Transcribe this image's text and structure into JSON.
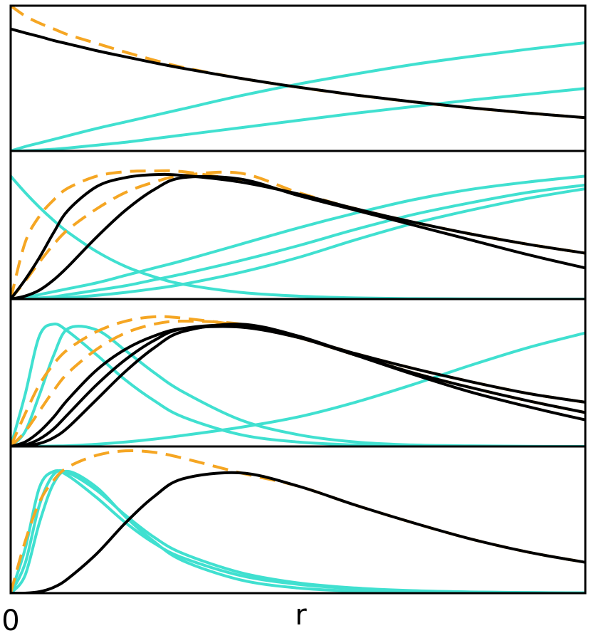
{
  "chart_data": [
    {
      "type": "line",
      "xlim": [
        0,
        1
      ],
      "ylim": [
        0,
        1
      ],
      "x": [
        0,
        0.025,
        0.05,
        0.075,
        0.1,
        0.15,
        0.2,
        0.25,
        0.3,
        0.4,
        0.5,
        0.6,
        0.7,
        0.8,
        0.9,
        1
      ],
      "series": [
        {
          "color": "#40e0d0",
          "values": [
            0,
            0.03,
            0.055,
            0.08,
            0.105,
            0.155,
            0.2,
            0.245,
            0.29,
            0.38,
            0.46,
            0.53,
            0.595,
            0.65,
            0.7,
            0.745
          ]
        },
        {
          "color": "#40e0d0",
          "values": [
            0,
            0.002,
            0.006,
            0.012,
            0.02,
            0.04,
            0.06,
            0.085,
            0.11,
            0.16,
            0.21,
            0.26,
            0.305,
            0.35,
            0.39,
            0.43
          ]
        },
        {
          "color": "#f5a623",
          "dashed": true,
          "values": [
            1.0,
            0.93,
            0.88,
            0.84,
            0.8,
            0.74,
            0.68,
            0.625,
            0.575,
            0.5,
            0.439,
            0.385,
            0.338,
            0.297,
            0.261,
            0.229
          ]
        },
        {
          "color": "#000000",
          "values": [
            0.84,
            0.813,
            0.788,
            0.76,
            0.737,
            0.69,
            0.648,
            0.607,
            0.569,
            0.5,
            0.439,
            0.385,
            0.338,
            0.297,
            0.261,
            0.229
          ]
        }
      ]
    },
    {
      "type": "line",
      "xlim": [
        0,
        1
      ],
      "ylim": [
        0,
        1
      ],
      "x": [
        0,
        0.025,
        0.05,
        0.075,
        0.1,
        0.15,
        0.2,
        0.25,
        0.3,
        0.4,
        0.5,
        0.6,
        0.7,
        0.8,
        0.9,
        1
      ],
      "series": [
        {
          "color": "#40e0d0",
          "values": [
            0.83,
            0.72,
            0.62,
            0.53,
            0.45,
            0.32,
            0.22,
            0.15,
            0.1,
            0.045,
            0.02,
            0.008,
            0.003,
            0.001,
            0,
            0
          ]
        },
        {
          "color": "#40e0d0",
          "values": [
            0,
            0.01,
            0.03,
            0.05,
            0.07,
            0.11,
            0.16,
            0.21,
            0.26,
            0.37,
            0.48,
            0.58,
            0.67,
            0.74,
            0.79,
            0.83
          ]
        },
        {
          "color": "#40e0d0",
          "values": [
            0,
            0.003,
            0.008,
            0.015,
            0.03,
            0.06,
            0.09,
            0.13,
            0.17,
            0.26,
            0.36,
            0.47,
            0.57,
            0.65,
            0.72,
            0.77
          ]
        },
        {
          "color": "#40e0d0",
          "values": [
            0,
            0,
            0.002,
            0.005,
            0.01,
            0.025,
            0.045,
            0.07,
            0.1,
            0.18,
            0.28,
            0.4,
            0.51,
            0.6,
            0.68,
            0.745
          ]
        },
        {
          "color": "#f5a623",
          "dashed": true,
          "values": [
            0,
            0.38,
            0.56,
            0.67,
            0.75,
            0.83,
            0.86,
            0.865,
            0.86,
            0.8,
            0.71,
            0.61,
            0.52,
            0.44,
            0.37,
            0.31
          ]
        },
        {
          "color": "#f5a623",
          "dashed": true,
          "values": [
            0,
            0.12,
            0.25,
            0.37,
            0.47,
            0.61,
            0.72,
            0.79,
            0.835,
            0.85,
            0.72,
            0.61,
            0.52,
            0.44,
            0.37,
            0.31
          ]
        },
        {
          "color": "#000000",
          "values": [
            0,
            0.13,
            0.28,
            0.45,
            0.6,
            0.76,
            0.82,
            0.84,
            0.835,
            0.79,
            0.71,
            0.61,
            0.52,
            0.44,
            0.37,
            0.31
          ]
        },
        {
          "color": "#000000",
          "values": [
            0,
            0.02,
            0.06,
            0.13,
            0.22,
            0.42,
            0.6,
            0.74,
            0.82,
            0.81,
            0.7,
            0.6,
            0.5,
            0.4,
            0.3,
            0.21
          ]
        }
      ]
    },
    {
      "type": "line",
      "xlim": [
        0,
        1
      ],
      "ylim": [
        0,
        1
      ],
      "x": [
        0,
        0.025,
        0.05,
        0.075,
        0.1,
        0.15,
        0.2,
        0.25,
        0.3,
        0.4,
        0.5,
        0.6,
        0.7,
        0.8,
        0.9,
        1
      ],
      "series": [
        {
          "color": "#40e0d0",
          "values": [
            0,
            0.35,
            0.75,
            0.83,
            0.78,
            0.62,
            0.45,
            0.31,
            0.2,
            0.08,
            0.03,
            0.01,
            0.004,
            0.001,
            0,
            0
          ]
        },
        {
          "color": "#40e0d0",
          "values": [
            0,
            0.1,
            0.35,
            0.62,
            0.8,
            0.79,
            0.65,
            0.5,
            0.37,
            0.18,
            0.08,
            0.03,
            0.01,
            0.004,
            0.001,
            0
          ]
        },
        {
          "color": "#40e0d0",
          "values": [
            0,
            0,
            0.001,
            0.003,
            0.005,
            0.015,
            0.03,
            0.05,
            0.075,
            0.13,
            0.2,
            0.3,
            0.42,
            0.55,
            0.67,
            0.77
          ]
        },
        {
          "color": "#f5a623",
          "dashed": true,
          "values": [
            0,
            0.22,
            0.42,
            0.56,
            0.66,
            0.78,
            0.85,
            0.88,
            0.87,
            0.82,
            0.74,
            0.63,
            0.53,
            0.44,
            0.36,
            0.3
          ]
        },
        {
          "color": "#f5a623",
          "dashed": true,
          "values": [
            0,
            0.1,
            0.24,
            0.38,
            0.5,
            0.66,
            0.77,
            0.83,
            0.85,
            0.83,
            0.74,
            0.62,
            0.5,
            0.4,
            0.31,
            0.23
          ]
        },
        {
          "color": "#000000",
          "values": [
            0,
            0.03,
            0.1,
            0.2,
            0.32,
            0.52,
            0.66,
            0.75,
            0.8,
            0.81,
            0.74,
            0.63,
            0.53,
            0.44,
            0.36,
            0.3
          ]
        },
        {
          "color": "#000000",
          "values": [
            0,
            0.01,
            0.05,
            0.12,
            0.22,
            0.42,
            0.59,
            0.72,
            0.8,
            0.82,
            0.74,
            0.62,
            0.5,
            0.4,
            0.31,
            0.23
          ]
        },
        {
          "color": "#000000",
          "values": [
            0,
            0.005,
            0.02,
            0.06,
            0.13,
            0.32,
            0.51,
            0.67,
            0.78,
            0.83,
            0.75,
            0.62,
            0.49,
            0.37,
            0.27,
            0.18
          ]
        }
      ]
    },
    {
      "type": "line",
      "xlim": [
        0,
        1
      ],
      "ylim": [
        0,
        1
      ],
      "xticks": [
        0
      ],
      "xlabel": "r",
      "x": [
        0,
        0.025,
        0.05,
        0.075,
        0.1,
        0.15,
        0.2,
        0.25,
        0.3,
        0.4,
        0.5,
        0.6,
        0.7,
        0.8,
        0.9,
        1
      ],
      "series": [
        {
          "color": "#40e0d0",
          "values": [
            0,
            0.3,
            0.72,
            0.83,
            0.8,
            0.65,
            0.48,
            0.34,
            0.24,
            0.12,
            0.06,
            0.03,
            0.015,
            0.007,
            0.003,
            0.001
          ]
        },
        {
          "color": "#40e0d0",
          "values": [
            0,
            0.2,
            0.6,
            0.81,
            0.82,
            0.7,
            0.53,
            0.38,
            0.27,
            0.14,
            0.07,
            0.035,
            0.017,
            0.008,
            0.004,
            0.002
          ]
        },
        {
          "color": "#40e0d0",
          "values": [
            0,
            0.12,
            0.48,
            0.75,
            0.83,
            0.72,
            0.52,
            0.35,
            0.22,
            0.09,
            0.035,
            0.013,
            0.005,
            0.002,
            0.001,
            0
          ]
        },
        {
          "color": "#f5a623",
          "dashed": true,
          "values": [
            0,
            0.35,
            0.62,
            0.77,
            0.86,
            0.94,
            0.97,
            0.96,
            0.92,
            0.82,
            0.73,
            0.6,
            0.48,
            0.37,
            0.28,
            0.21
          ]
        },
        {
          "color": "#000000",
          "values": [
            0,
            0,
            0.01,
            0.04,
            0.1,
            0.27,
            0.48,
            0.66,
            0.78,
            0.82,
            0.73,
            0.6,
            0.48,
            0.37,
            0.28,
            0.21
          ]
        }
      ]
    }
  ]
}
